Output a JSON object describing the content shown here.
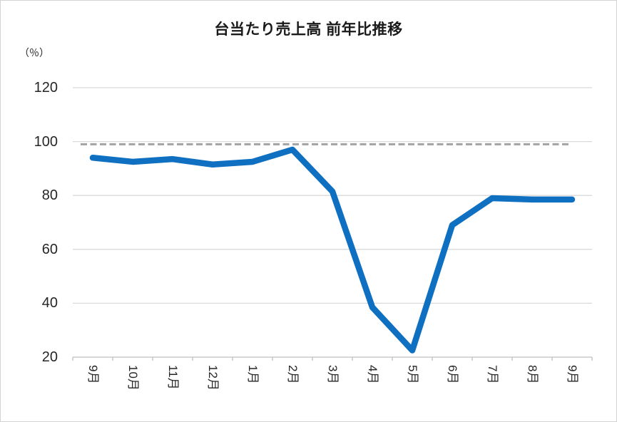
{
  "chart": {
    "title": "台当たり売上高 前年比推移",
    "unit_label": "（％）"
  },
  "chart_data": {
    "type": "line",
    "title": "台当たり売上高 前年比推移",
    "ylabel": "（％）",
    "categories": [
      "9月",
      "10月",
      "11月",
      "12月",
      "1月",
      "2月",
      "3月",
      "4月",
      "5月",
      "6月",
      "7月",
      "8月",
      "9月"
    ],
    "values": [
      94,
      92.5,
      93.5,
      91.5,
      92.5,
      97,
      81.5,
      38.5,
      22.5,
      69,
      79,
      78.5,
      78.5
    ],
    "yticks": [
      20,
      40,
      60,
      80,
      100,
      120
    ],
    "ylim": [
      20,
      120
    ],
    "grid": true,
    "legend_position": "none",
    "reference_line": {
      "value": 99,
      "style": "dashed"
    },
    "colors": {
      "line": "#0F6FC1",
      "reference": "#A3A3A3",
      "gridline": "#D9D9D9",
      "axis": "#BFBFBF",
      "label": "#262626",
      "title": "#1A1A1A"
    }
  }
}
